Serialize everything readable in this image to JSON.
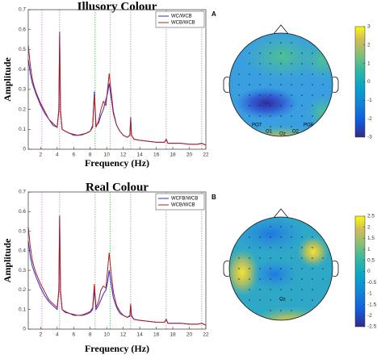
{
  "chart_data": [
    {
      "type": "line",
      "title": "Illusory Colour",
      "xlabel": "Frequency (Hz)",
      "ylabel": "Amplitude",
      "xlim": [
        0.5,
        22
      ],
      "xticks": [
        2,
        4,
        6,
        8,
        10,
        12,
        14,
        16,
        18,
        20,
        22
      ],
      "ylim": [
        0,
        0.7
      ],
      "yticks": [
        0,
        0.1,
        0.2,
        0.3,
        0.4,
        0.5,
        0.6,
        0.7
      ],
      "legend": "upper right",
      "x": [
        0.5,
        0.75,
        1,
        1.25,
        1.5,
        2,
        2.5,
        3,
        3.5,
        4,
        4.2,
        4.3,
        4.4,
        4.6,
        5,
        5.5,
        6,
        6.5,
        7,
        7.5,
        8,
        8.3,
        8.5,
        8.7,
        9,
        9.3,
        9.6,
        9.9,
        10.1,
        10.3,
        10.5,
        10.8,
        11.2,
        11.6,
        12,
        12.5,
        12.8,
        12.9,
        13,
        13.3,
        14,
        15,
        16,
        17,
        17.2,
        17.4,
        18,
        19,
        20,
        21,
        21.5,
        22
      ],
      "series": [
        {
          "name": "WC/WCB",
          "color": "#2b2bd8",
          "values": [
            0.45,
            0.38,
            0.33,
            0.3,
            0.27,
            0.22,
            0.18,
            0.15,
            0.12,
            0.11,
            0.2,
            0.59,
            0.2,
            0.1,
            0.09,
            0.08,
            0.075,
            0.07,
            0.075,
            0.08,
            0.09,
            0.12,
            0.29,
            0.12,
            0.13,
            0.17,
            0.2,
            0.25,
            0.28,
            0.33,
            0.27,
            0.18,
            0.12,
            0.09,
            0.07,
            0.06,
            0.07,
            0.16,
            0.07,
            0.05,
            0.045,
            0.04,
            0.035,
            0.035,
            0.05,
            0.03,
            0.03,
            0.03,
            0.025,
            0.025,
            0.03,
            0.02
          ]
        },
        {
          "name": "WCB/WCB",
          "color": "#b81c1c",
          "values": [
            0.52,
            0.42,
            0.35,
            0.31,
            0.28,
            0.23,
            0.19,
            0.15,
            0.13,
            0.11,
            0.19,
            0.57,
            0.19,
            0.1,
            0.09,
            0.08,
            0.07,
            0.07,
            0.072,
            0.08,
            0.09,
            0.11,
            0.27,
            0.11,
            0.14,
            0.2,
            0.24,
            0.22,
            0.3,
            0.38,
            0.3,
            0.19,
            0.12,
            0.09,
            0.07,
            0.06,
            0.07,
            0.15,
            0.07,
            0.05,
            0.045,
            0.04,
            0.035,
            0.035,
            0.05,
            0.03,
            0.03,
            0.03,
            0.025,
            0.025,
            0.03,
            0.02
          ]
        }
      ],
      "markers": [
        {
          "x": 2.15,
          "color": "#e070e0"
        },
        {
          "x": 4.3,
          "color": "#999999"
        },
        {
          "x": 8.6,
          "color": "#33bb33"
        },
        {
          "x": 10.4,
          "color": "#999999"
        },
        {
          "x": 12.9,
          "color": "#999999"
        },
        {
          "x": 17.2,
          "color": "#999999"
        },
        {
          "x": 21.5,
          "color": "#999999"
        }
      ]
    },
    {
      "type": "topomap",
      "panel_label": "A",
      "electrode_labels": [
        "PO7",
        "O1",
        "Oz",
        "O2",
        "PO8"
      ],
      "clim": [
        -3,
        3
      ],
      "cticks": [
        3,
        2,
        1,
        0,
        -1,
        -2,
        -3
      ]
    },
    {
      "type": "line",
      "title": "Real Colour",
      "xlabel": "Frequency (Hz)",
      "ylabel": "Amplitude",
      "xlim": [
        0.5,
        22
      ],
      "xticks": [
        2,
        4,
        6,
        8,
        10,
        12,
        14,
        16,
        18,
        20,
        22
      ],
      "ylim": [
        0,
        0.7
      ],
      "yticks": [
        0,
        0.1,
        0.2,
        0.3,
        0.4,
        0.5,
        0.6,
        0.7
      ],
      "legend": "upper right",
      "x": [
        0.5,
        0.75,
        1,
        1.25,
        1.5,
        2,
        2.5,
        3,
        3.5,
        4,
        4.2,
        4.3,
        4.4,
        4.6,
        5,
        5.5,
        6,
        6.5,
        7,
        7.5,
        8,
        8.3,
        8.5,
        8.7,
        9,
        9.3,
        9.6,
        9.9,
        10.1,
        10.3,
        10.5,
        10.8,
        11.2,
        11.6,
        12,
        12.5,
        12.8,
        12.9,
        13,
        13.3,
        14,
        15,
        16,
        17,
        17.2,
        17.4,
        18,
        19,
        20,
        21,
        21.5,
        22
      ],
      "series": [
        {
          "name": "WCFB/WCB",
          "color": "#2b2bd8",
          "values": [
            0.45,
            0.37,
            0.32,
            0.29,
            0.26,
            0.21,
            0.17,
            0.14,
            0.12,
            0.1,
            0.2,
            0.58,
            0.2,
            0.1,
            0.085,
            0.08,
            0.075,
            0.07,
            0.07,
            0.075,
            0.085,
            0.1,
            0.2,
            0.1,
            0.12,
            0.15,
            0.18,
            0.2,
            0.24,
            0.3,
            0.24,
            0.16,
            0.11,
            0.08,
            0.07,
            0.06,
            0.065,
            0.12,
            0.065,
            0.05,
            0.045,
            0.04,
            0.035,
            0.035,
            0.05,
            0.03,
            0.03,
            0.03,
            0.025,
            0.025,
            0.03,
            0.02
          ]
        },
        {
          "name": "WCB/WCB",
          "color": "#b81c1c",
          "values": [
            0.52,
            0.42,
            0.35,
            0.31,
            0.28,
            0.23,
            0.19,
            0.15,
            0.13,
            0.11,
            0.19,
            0.57,
            0.19,
            0.1,
            0.09,
            0.08,
            0.07,
            0.07,
            0.072,
            0.08,
            0.09,
            0.11,
            0.23,
            0.11,
            0.14,
            0.2,
            0.22,
            0.21,
            0.3,
            0.39,
            0.3,
            0.19,
            0.12,
            0.09,
            0.07,
            0.06,
            0.07,
            0.13,
            0.07,
            0.05,
            0.045,
            0.04,
            0.035,
            0.035,
            0.05,
            0.03,
            0.03,
            0.03,
            0.025,
            0.025,
            0.03,
            0.02
          ]
        }
      ],
      "markers": [
        {
          "x": 2.15,
          "color": "#e070e0"
        },
        {
          "x": 4.3,
          "color": "#999999"
        },
        {
          "x": 8.6,
          "color": "#999999"
        },
        {
          "x": 10.4,
          "color": "#33bb33"
        },
        {
          "x": 12.9,
          "color": "#999999"
        },
        {
          "x": 17.2,
          "color": "#999999"
        },
        {
          "x": 21.5,
          "color": "#999999"
        }
      ]
    },
    {
      "type": "topomap",
      "panel_label": "B",
      "electrode_labels": [
        "Oz"
      ],
      "clim": [
        -2.5,
        2.5
      ],
      "cticks": [
        2.5,
        2,
        1.5,
        1,
        0.5,
        0,
        -0.5,
        -1,
        -1.5,
        -2,
        -2.5
      ]
    }
  ]
}
